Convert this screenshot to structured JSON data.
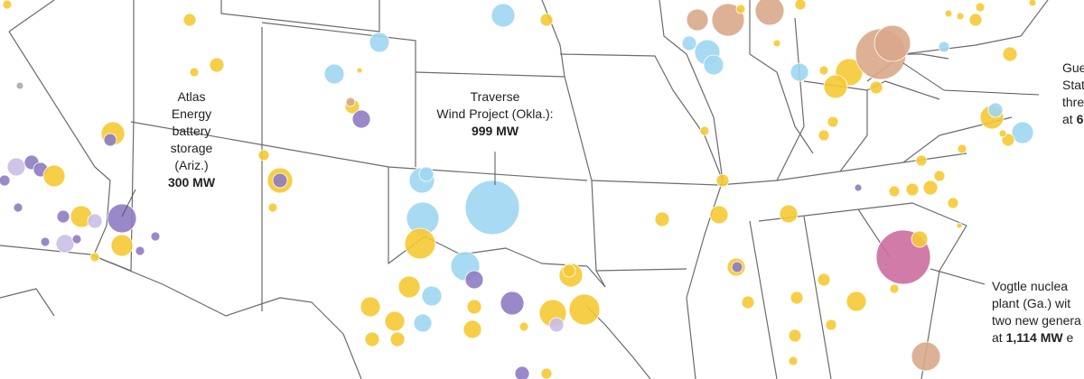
{
  "annotations": [
    {
      "lines": [
        [
          {
            "text": "Atlas",
            "bold": false
          }
        ],
        [
          {
            "text": "Energy",
            "bold": false
          }
        ],
        [
          {
            "text": "battery",
            "bold": false
          }
        ],
        [
          {
            "text": "storage",
            "bold": false
          }
        ],
        [
          {
            "text": "(Ariz.)",
            "bold": false
          }
        ],
        [
          {
            "text": "300 MW",
            "bold": true
          }
        ]
      ]
    },
    {
      "lines": [
        [
          {
            "text": "Traverse",
            "bold": false
          }
        ],
        [
          {
            "text": "Wind Project (Okla.):",
            "bold": false
          }
        ],
        [
          {
            "text": "999 MW",
            "bold": true
          }
        ]
      ]
    },
    {
      "lines": [
        [
          {
            "text": "Gue",
            "bold": false
          }
        ],
        [
          {
            "text": "Stati",
            "bold": false
          }
        ],
        [
          {
            "text": "three",
            "bold": false
          }
        ],
        [
          {
            "text": "at ",
            "bold": false
          },
          {
            "text": "6",
            "bold": true
          }
        ]
      ]
    },
    {
      "lines": [
        [
          {
            "text": "Vogtle nuclea",
            "bold": false
          }
        ],
        [
          {
            "text": "plant (Ga.) wit",
            "bold": false
          }
        ],
        [
          {
            "text": "two new genera",
            "bold": false
          }
        ],
        [
          {
            "text": "at ",
            "bold": false
          },
          {
            "text": "1,114 MW",
            "bold": true
          },
          {
            "text": " e",
            "bold": false
          }
        ]
      ]
    }
  ]
}
